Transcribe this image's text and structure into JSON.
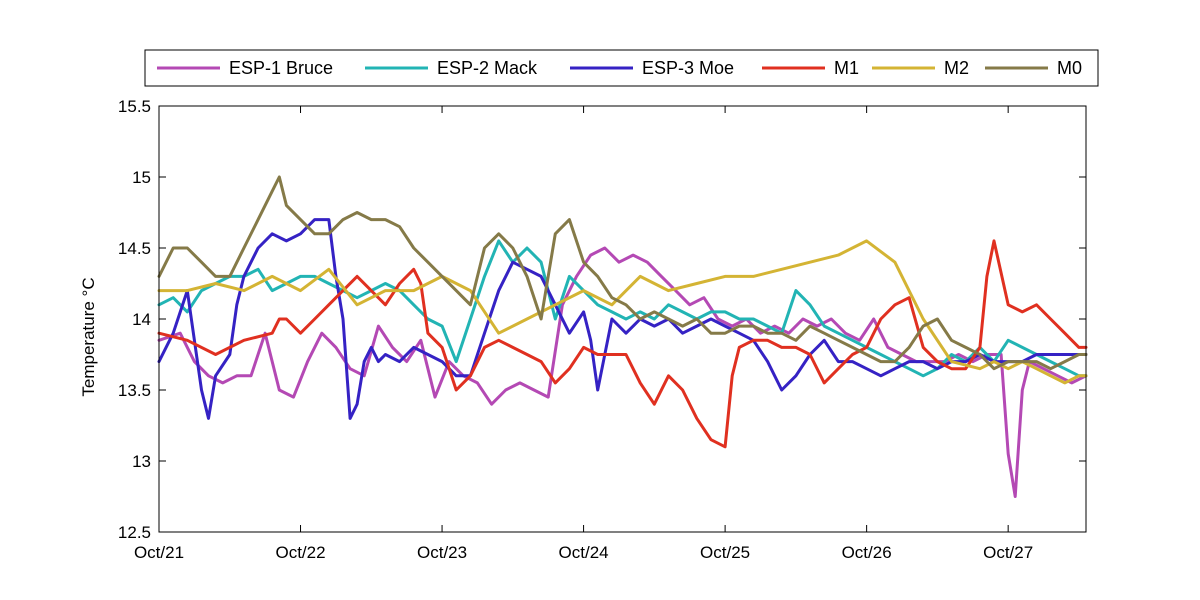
{
  "chart_data": {
    "type": "line",
    "title": "",
    "xlabel": "",
    "ylabel": "Temperature °C",
    "ylim": [
      12.5,
      15.5
    ],
    "xlim": [
      "Oct/21",
      "Oct/27 ~13:00"
    ],
    "yticks": [
      12.5,
      13,
      13.5,
      14,
      14.5,
      15,
      15.5
    ],
    "ytick_labels": [
      "12.5",
      "13",
      "13.5",
      "14",
      "14.5",
      "15",
      "15.5"
    ],
    "xticks": [
      0,
      1,
      2,
      3,
      4,
      5,
      6
    ],
    "xtick_labels": [
      "Oct/21",
      "Oct/22",
      "Oct/23",
      "Oct/24",
      "Oct/25",
      "Oct/26",
      "Oct/27"
    ],
    "x_units": "days from Oct/21",
    "grid": false,
    "legend_position": "top",
    "series": [
      {
        "name": "ESP-1 Bruce",
        "color": "#b449b4",
        "x": [
          0,
          0.15,
          0.25,
          0.35,
          0.45,
          0.55,
          0.65,
          0.75,
          0.85,
          0.95,
          1.05,
          1.15,
          1.25,
          1.35,
          1.45,
          1.55,
          1.65,
          1.75,
          1.85,
          1.95,
          2.05,
          2.15,
          2.25,
          2.35,
          2.45,
          2.55,
          2.65,
          2.75,
          2.85,
          2.95,
          3.05,
          3.15,
          3.25,
          3.35,
          3.45,
          3.55,
          3.65,
          3.75,
          3.85,
          3.95,
          4.05,
          4.15,
          4.25,
          4.35,
          4.45,
          4.55,
          4.65,
          4.75,
          4.85,
          4.95,
          5.05,
          5.15,
          5.25,
          5.35,
          5.45,
          5.55,
          5.65,
          5.75,
          5.85,
          5.95,
          6.0,
          6.05,
          6.1,
          6.15,
          6.25,
          6.35,
          6.45,
          6.55
        ],
        "y": [
          13.85,
          13.9,
          13.7,
          13.6,
          13.55,
          13.6,
          13.6,
          13.9,
          13.5,
          13.45,
          13.7,
          13.9,
          13.8,
          13.65,
          13.6,
          13.95,
          13.8,
          13.7,
          13.85,
          13.45,
          13.7,
          13.6,
          13.55,
          13.4,
          13.5,
          13.55,
          13.5,
          13.45,
          14.1,
          14.3,
          14.45,
          14.5,
          14.4,
          14.45,
          14.4,
          14.3,
          14.2,
          14.1,
          14.15,
          14.0,
          13.95,
          14.0,
          13.9,
          13.95,
          13.9,
          14.0,
          13.95,
          14.0,
          13.9,
          13.85,
          14.0,
          13.8,
          13.75,
          13.7,
          13.7,
          13.7,
          13.75,
          13.7,
          13.75,
          13.75,
          13.05,
          12.75,
          13.5,
          13.7,
          13.65,
          13.6,
          13.55,
          13.6
        ]
      },
      {
        "name": "ESP-2 Mack",
        "color": "#22b4b4",
        "x": [
          0,
          0.1,
          0.2,
          0.3,
          0.4,
          0.5,
          0.6,
          0.7,
          0.8,
          0.9,
          1.0,
          1.1,
          1.2,
          1.3,
          1.4,
          1.5,
          1.6,
          1.7,
          1.8,
          1.9,
          2.0,
          2.1,
          2.2,
          2.3,
          2.4,
          2.5,
          2.6,
          2.7,
          2.8,
          2.9,
          3.0,
          3.1,
          3.2,
          3.3,
          3.4,
          3.5,
          3.6,
          3.7,
          3.8,
          3.9,
          4.0,
          4.1,
          4.2,
          4.3,
          4.4,
          4.5,
          4.6,
          4.7,
          4.8,
          4.9,
          5.0,
          5.1,
          5.2,
          5.3,
          5.4,
          5.5,
          5.6,
          5.7,
          5.8,
          5.9,
          6.0,
          6.1,
          6.2,
          6.3,
          6.4,
          6.5,
          6.55
        ],
        "y": [
          14.1,
          14.15,
          14.05,
          14.2,
          14.25,
          14.3,
          14.3,
          14.35,
          14.2,
          14.25,
          14.3,
          14.3,
          14.25,
          14.2,
          14.15,
          14.2,
          14.25,
          14.2,
          14.1,
          14.0,
          13.95,
          13.7,
          14.0,
          14.3,
          14.55,
          14.4,
          14.5,
          14.4,
          14.0,
          14.3,
          14.2,
          14.1,
          14.05,
          14.0,
          14.05,
          14.0,
          14.1,
          14.05,
          14.0,
          14.05,
          14.05,
          14.0,
          14.0,
          13.95,
          13.9,
          14.2,
          14.1,
          13.95,
          13.9,
          13.85,
          13.8,
          13.75,
          13.7,
          13.65,
          13.6,
          13.65,
          13.75,
          13.7,
          13.8,
          13.7,
          13.85,
          13.8,
          13.75,
          13.7,
          13.65,
          13.6,
          13.6
        ]
      },
      {
        "name": "ESP-3 Moe",
        "color": "#3522c4",
        "x": [
          0,
          0.1,
          0.2,
          0.3,
          0.35,
          0.4,
          0.5,
          0.55,
          0.6,
          0.7,
          0.8,
          0.9,
          1.0,
          1.1,
          1.2,
          1.25,
          1.3,
          1.35,
          1.4,
          1.45,
          1.5,
          1.55,
          1.6,
          1.7,
          1.8,
          1.9,
          2.0,
          2.1,
          2.2,
          2.3,
          2.4,
          2.5,
          2.6,
          2.7,
          2.8,
          2.9,
          3.0,
          3.05,
          3.1,
          3.2,
          3.3,
          3.4,
          3.5,
          3.6,
          3.7,
          3.8,
          3.9,
          4.0,
          4.1,
          4.2,
          4.3,
          4.4,
          4.5,
          4.6,
          4.7,
          4.8,
          4.9,
          5.0,
          5.1,
          5.2,
          5.3,
          5.4,
          5.5,
          5.6,
          5.7,
          5.8,
          5.9,
          6.0,
          6.1,
          6.2,
          6.3,
          6.4,
          6.5,
          6.55
        ],
        "y": [
          13.7,
          13.9,
          14.2,
          13.5,
          13.3,
          13.6,
          13.75,
          14.1,
          14.3,
          14.5,
          14.6,
          14.55,
          14.6,
          14.7,
          14.7,
          14.3,
          14.0,
          13.3,
          13.4,
          13.7,
          13.8,
          13.7,
          13.75,
          13.7,
          13.8,
          13.75,
          13.7,
          13.6,
          13.6,
          13.9,
          14.2,
          14.4,
          14.35,
          14.3,
          14.1,
          13.9,
          14.05,
          13.85,
          13.5,
          14.0,
          13.9,
          14.0,
          13.95,
          14.0,
          13.9,
          13.95,
          14.0,
          13.95,
          13.9,
          13.85,
          13.7,
          13.5,
          13.6,
          13.75,
          13.85,
          13.7,
          13.7,
          13.65,
          13.6,
          13.65,
          13.7,
          13.7,
          13.65,
          13.7,
          13.7,
          13.75,
          13.7,
          13.7,
          13.7,
          13.75,
          13.75,
          13.75,
          13.75,
          13.75
        ]
      },
      {
        "name": "M1",
        "color": "#e03020",
        "x": [
          0,
          0.2,
          0.4,
          0.6,
          0.8,
          0.85,
          0.9,
          1.0,
          1.1,
          1.2,
          1.4,
          1.6,
          1.7,
          1.8,
          1.85,
          1.9,
          2.0,
          2.1,
          2.2,
          2.3,
          2.4,
          2.5,
          2.6,
          2.7,
          2.8,
          2.9,
          3.0,
          3.1,
          3.2,
          3.3,
          3.4,
          3.5,
          3.6,
          3.7,
          3.8,
          3.9,
          4.0,
          4.05,
          4.1,
          4.2,
          4.3,
          4.4,
          4.5,
          4.6,
          4.7,
          4.8,
          4.9,
          5.0,
          5.1,
          5.2,
          5.3,
          5.4,
          5.5,
          5.6,
          5.7,
          5.8,
          5.85,
          5.9,
          6.0,
          6.1,
          6.2,
          6.3,
          6.4,
          6.5,
          6.55
        ],
        "y": [
          13.9,
          13.85,
          13.75,
          13.85,
          13.9,
          14.0,
          14.0,
          13.9,
          14.0,
          14.1,
          14.3,
          14.1,
          14.25,
          14.35,
          14.25,
          13.9,
          13.8,
          13.5,
          13.6,
          13.8,
          13.85,
          13.8,
          13.75,
          13.7,
          13.55,
          13.65,
          13.8,
          13.75,
          13.75,
          13.75,
          13.55,
          13.4,
          13.6,
          13.5,
          13.3,
          13.15,
          13.1,
          13.6,
          13.8,
          13.85,
          13.85,
          13.8,
          13.8,
          13.75,
          13.55,
          13.65,
          13.75,
          13.8,
          14.0,
          14.1,
          14.15,
          13.8,
          13.7,
          13.65,
          13.65,
          13.8,
          14.3,
          14.55,
          14.1,
          14.05,
          14.1,
          14.0,
          13.9,
          13.8,
          13.8
        ]
      },
      {
        "name": "M2",
        "color": "#d4b434",
        "x": [
          0,
          0.2,
          0.4,
          0.6,
          0.8,
          1.0,
          1.2,
          1.4,
          1.6,
          1.8,
          2.0,
          2.2,
          2.4,
          2.6,
          2.8,
          3.0,
          3.2,
          3.4,
          3.6,
          3.8,
          4.0,
          4.2,
          4.4,
          4.6,
          4.8,
          5.0,
          5.2,
          5.4,
          5.6,
          5.8,
          5.9,
          6.0,
          6.1,
          6.2,
          6.3,
          6.4,
          6.5,
          6.55
        ],
        "y": [
          14.2,
          14.2,
          14.25,
          14.2,
          14.3,
          14.2,
          14.35,
          14.1,
          14.2,
          14.2,
          14.3,
          14.2,
          13.9,
          14.0,
          14.1,
          14.2,
          14.1,
          14.3,
          14.2,
          14.25,
          14.3,
          14.3,
          14.35,
          14.4,
          14.45,
          14.55,
          14.4,
          14.0,
          13.7,
          13.65,
          13.7,
          13.65,
          13.7,
          13.65,
          13.6,
          13.55,
          13.6,
          13.6
        ]
      },
      {
        "name": "M0",
        "color": "#857a48",
        "x": [
          0,
          0.1,
          0.2,
          0.3,
          0.4,
          0.5,
          0.6,
          0.7,
          0.8,
          0.85,
          0.9,
          1.0,
          1.1,
          1.2,
          1.3,
          1.4,
          1.5,
          1.6,
          1.7,
          1.8,
          1.9,
          2.0,
          2.1,
          2.2,
          2.3,
          2.4,
          2.5,
          2.6,
          2.7,
          2.75,
          2.8,
          2.9,
          3.0,
          3.1,
          3.2,
          3.3,
          3.4,
          3.5,
          3.6,
          3.7,
          3.8,
          3.9,
          4.0,
          4.1,
          4.2,
          4.3,
          4.4,
          4.5,
          4.6,
          4.7,
          4.8,
          4.9,
          5.0,
          5.1,
          5.2,
          5.3,
          5.4,
          5.5,
          5.6,
          5.7,
          5.8,
          5.9,
          6.0,
          6.1,
          6.2,
          6.3,
          6.4,
          6.5,
          6.55
        ],
        "y": [
          14.3,
          14.5,
          14.5,
          14.4,
          14.3,
          14.3,
          14.5,
          14.7,
          14.9,
          15.0,
          14.8,
          14.7,
          14.6,
          14.6,
          14.7,
          14.75,
          14.7,
          14.7,
          14.65,
          14.5,
          14.4,
          14.3,
          14.2,
          14.1,
          14.5,
          14.6,
          14.5,
          14.3,
          14.0,
          14.3,
          14.6,
          14.7,
          14.4,
          14.3,
          14.15,
          14.1,
          14.0,
          14.05,
          14.0,
          13.95,
          14.0,
          13.9,
          13.9,
          13.95,
          13.95,
          13.9,
          13.9,
          13.85,
          13.95,
          13.9,
          13.85,
          13.8,
          13.75,
          13.7,
          13.7,
          13.8,
          13.95,
          14.0,
          13.85,
          13.8,
          13.75,
          13.65,
          13.7,
          13.7,
          13.7,
          13.65,
          13.7,
          13.75,
          13.75
        ]
      }
    ]
  }
}
